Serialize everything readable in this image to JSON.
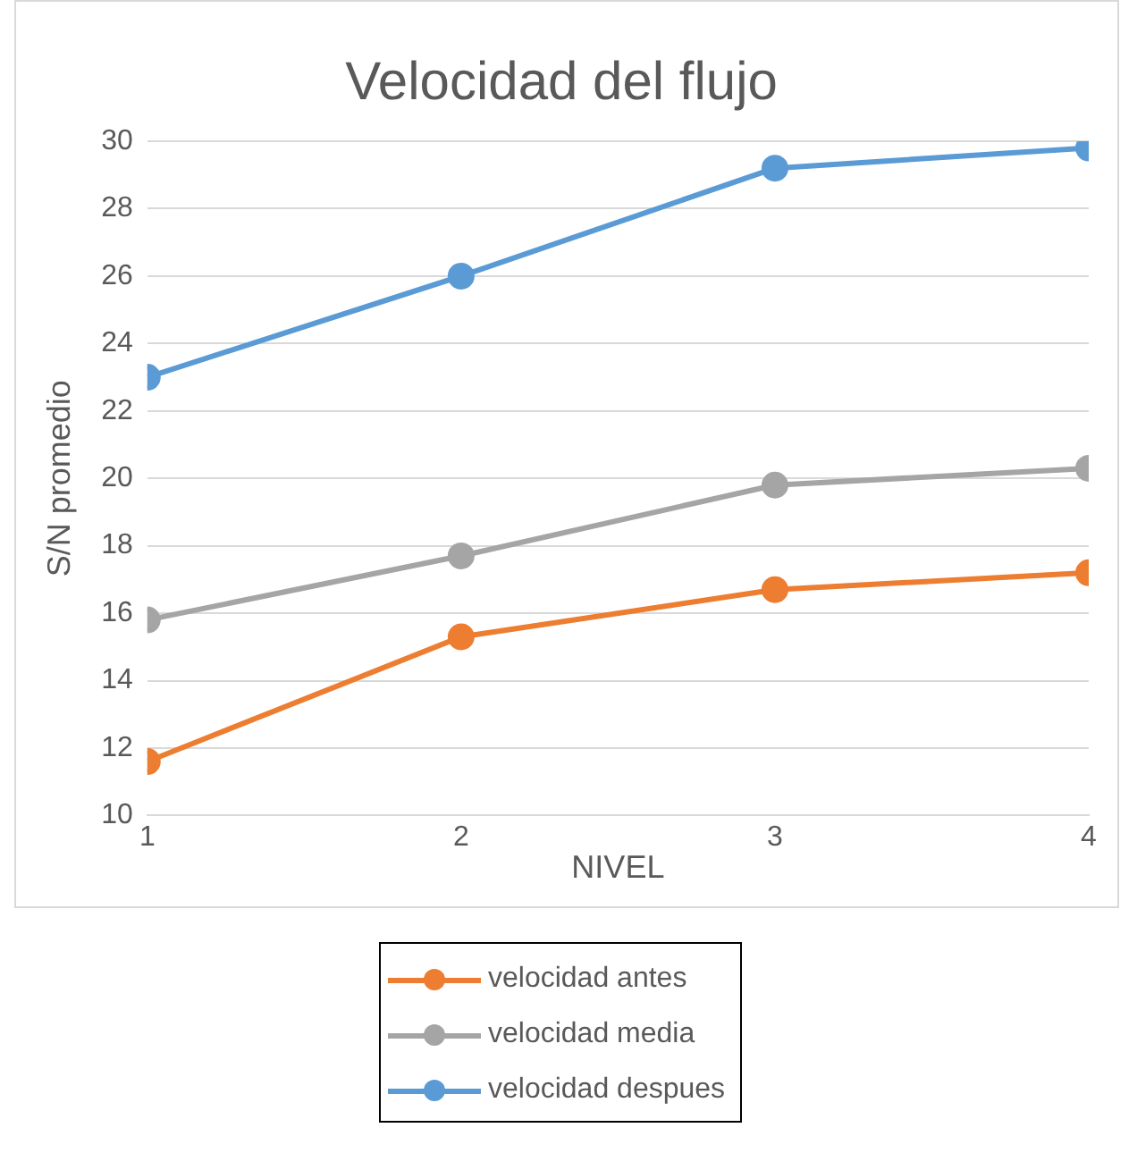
{
  "chart_data": {
    "type": "line",
    "title": "Velocidad del flujo",
    "xlabel": "NIVEL",
    "ylabel": "S/N promedio",
    "x": [
      1,
      2,
      3,
      4
    ],
    "series": [
      {
        "name": "velocidad antes",
        "color": "#ed7d31",
        "values": [
          11.6,
          15.3,
          16.7,
          17.2
        ]
      },
      {
        "name": "velocidad media",
        "color": "#a5a5a5",
        "values": [
          15.8,
          17.7,
          19.8,
          20.3
        ]
      },
      {
        "name": "velocidad despues",
        "color": "#5b9bd5",
        "values": [
          23,
          26,
          29.2,
          29.8
        ]
      }
    ],
    "xlim": [
      1,
      4
    ],
    "xticks": [
      1,
      2,
      3,
      4
    ],
    "ylim": [
      10,
      30
    ],
    "yticks": [
      10,
      12,
      14,
      16,
      18,
      20,
      22,
      24,
      26,
      28,
      30
    ],
    "grid": "y",
    "legend": "bottom",
    "marker": "circle",
    "line_style": "solid"
  }
}
